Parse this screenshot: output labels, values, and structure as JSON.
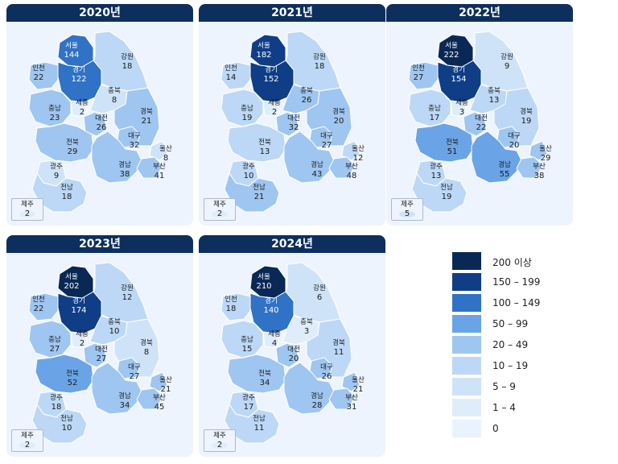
{
  "legend": [
    {
      "label": "200 이상",
      "color": "#0a2855"
    },
    {
      "label": "150 – 199",
      "color": "#0f3e87"
    },
    {
      "label": "100 – 149",
      "color": "#2f72c6"
    },
    {
      "label": "50 – 99",
      "color": "#6aa4e6"
    },
    {
      "label": "20 – 49",
      "color": "#9fc6f1"
    },
    {
      "label": "10 – 19",
      "color": "#bcd8f6"
    },
    {
      "label": "5 – 9",
      "color": "#cfe3f8"
    },
    {
      "label": "1 – 4",
      "color": "#dfedfb"
    },
    {
      "label": "0",
      "color": "#eaf3fd"
    }
  ],
  "map_data": {
    "region_names": {
      "seoul": "서울",
      "gyeonggi": "경기",
      "incheon": "인천",
      "gangwon": "강원",
      "chungbuk": "충북",
      "chungnam": "충남",
      "sejong": "세종",
      "daejeon": "대전",
      "gyeongbuk": "경북",
      "daegu": "대구",
      "jeonbuk": "전북",
      "gwangju": "광주",
      "jeonnam": "전남",
      "gyeongnam": "경남",
      "ulsan": "울산",
      "busan": "부산",
      "jeju": "제주"
    },
    "years": [
      {
        "title": "2020년",
        "values": {
          "seoul": 144,
          "gyeonggi": 122,
          "incheon": 22,
          "gangwon": 18,
          "chungbuk": 8,
          "chungnam": 23,
          "sejong": 2,
          "daejeon": 26,
          "gyeongbuk": 21,
          "daegu": 32,
          "jeonbuk": 29,
          "gwangju": 9,
          "jeonnam": 18,
          "gyeongnam": 38,
          "ulsan": 8,
          "busan": 41,
          "jeju": 2
        }
      },
      {
        "title": "2021년",
        "values": {
          "seoul": 182,
          "gyeonggi": 152,
          "incheon": 14,
          "gangwon": 18,
          "chungbuk": 26,
          "chungnam": 19,
          "sejong": 2,
          "daejeon": 32,
          "gyeongbuk": 20,
          "daegu": 27,
          "jeonbuk": 13,
          "gwangju": 10,
          "jeonnam": 21,
          "gyeongnam": 43,
          "ulsan": 12,
          "busan": 48,
          "jeju": 2
        }
      },
      {
        "title": "2022년",
        "values": {
          "seoul": 222,
          "gyeonggi": 154,
          "incheon": 27,
          "gangwon": 9,
          "chungbuk": 13,
          "chungnam": 17,
          "sejong": 3,
          "daejeon": 22,
          "gyeongbuk": 19,
          "daegu": 20,
          "jeonbuk": 51,
          "gwangju": 13,
          "jeonnam": 19,
          "gyeongnam": 55,
          "ulsan": 29,
          "busan": 38,
          "jeju": 5
        }
      },
      {
        "title": "2023년",
        "values": {
          "seoul": 202,
          "gyeonggi": 174,
          "incheon": 22,
          "gangwon": 12,
          "chungbuk": 10,
          "chungnam": 27,
          "sejong": 2,
          "daejeon": 27,
          "gyeongbuk": 8,
          "daegu": 27,
          "jeonbuk": 52,
          "gwangju": 18,
          "jeonnam": 10,
          "gyeongnam": 34,
          "ulsan": 21,
          "busan": 45,
          "jeju": 2
        }
      },
      {
        "title": "2024년",
        "values": {
          "seoul": 210,
          "gyeonggi": 140,
          "incheon": 18,
          "gangwon": 6,
          "chungbuk": 3,
          "chungnam": 15,
          "sejong": 4,
          "daejeon": 20,
          "gyeongbuk": 11,
          "daegu": 26,
          "jeonbuk": 34,
          "gwangju": 17,
          "jeonnam": 11,
          "gyeongnam": 28,
          "ulsan": 21,
          "busan": 31,
          "jeju": 2
        }
      }
    ]
  }
}
